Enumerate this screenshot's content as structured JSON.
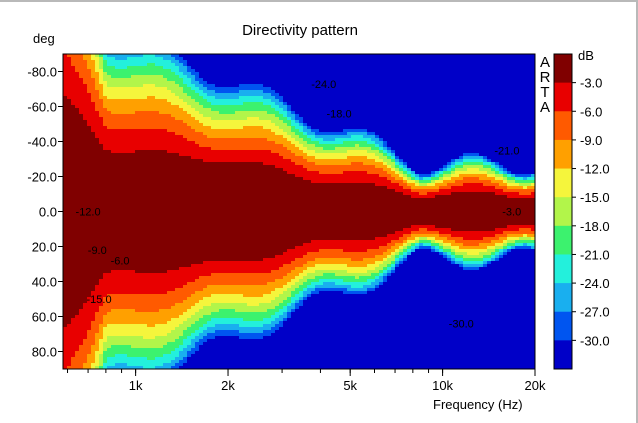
{
  "chart_data": {
    "type": "heatmap",
    "title": "Directivity pattern",
    "brand": "ARTA",
    "ylabel": "deg",
    "xlabel": "Frequency (Hz)",
    "colorbar_unit": "dB",
    "x_scale": "log",
    "xlim": [
      580,
      20000
    ],
    "ylim": [
      -90,
      90
    ],
    "y_ticks": [
      -80,
      -60,
      -40,
      -20,
      0,
      20,
      40,
      60,
      80
    ],
    "y_tick_labels": [
      "-80.0",
      "-60.0",
      "-40.0",
      "-20.0",
      "0.0",
      "20.0",
      "40.0",
      "60.0",
      "80.0"
    ],
    "x_ticks": [
      1000,
      2000,
      5000,
      10000,
      20000
    ],
    "x_tick_labels": [
      "1k",
      "2k",
      "5k",
      "10k",
      "20k"
    ],
    "levels": [
      0,
      -3,
      -6,
      -9,
      -12,
      -15,
      -18,
      -21,
      -24,
      -27,
      -30
    ],
    "level_labels": [
      "-3.0",
      "-6.0",
      "-9.0",
      "-12.0",
      "-15.0",
      "-18.0",
      "-21.0",
      "-24.0",
      "-27.0",
      "-30.0"
    ],
    "band_colors": [
      "#800000",
      "#e80000",
      "#ff5a00",
      "#ffa000",
      "#f5f53c",
      "#b2f54a",
      "#3cf26e",
      "#23f0dc",
      "#19afef",
      "#0055f0",
      "#0000c8"
    ],
    "contour_labels": [
      {
        "text": "-12.0",
        "freq": 700,
        "deg": 0
      },
      {
        "text": "-9.0",
        "freq": 750,
        "deg": 22
      },
      {
        "text": "-6.0",
        "freq": 890,
        "deg": 28
      },
      {
        "text": "-15.0",
        "freq": 760,
        "deg": 50
      },
      {
        "text": "-18.0",
        "freq": 4600,
        "deg": -56
      },
      {
        "text": "-21.0",
        "freq": 16200,
        "deg": -35
      },
      {
        "text": "-24.0",
        "freq": 4100,
        "deg": -73
      },
      {
        "text": "-3.0",
        "freq": 16800,
        "deg": 0
      },
      {
        "text": "-30.0",
        "freq": 11500,
        "deg": 64
      }
    ],
    "source_description": "Directivity levels in dB relative to on-axis, from -90 to 90 deg, vs frequency"
  }
}
